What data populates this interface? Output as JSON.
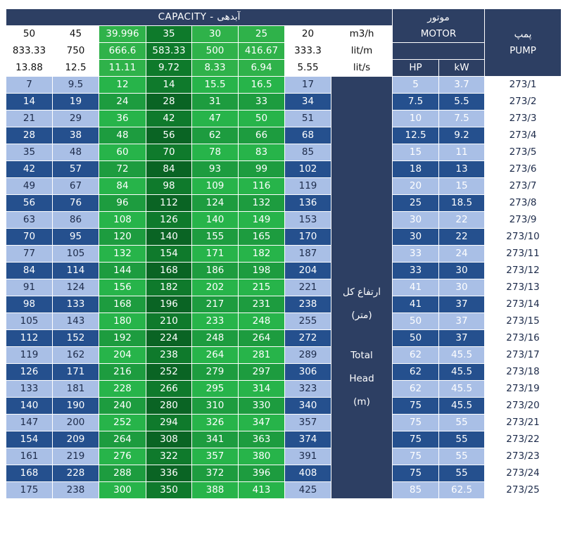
{
  "header": {
    "capacity_title": "CAPACITY - آبدهی",
    "motor_fa": "موتور",
    "motor_en": "MOTOR",
    "pump_fa": "پمپ",
    "pump_en": "PUMP",
    "hp": "HP",
    "kw": "kW"
  },
  "units": {
    "m3h": "m3/h",
    "litm": "lit/m",
    "lits": "lit/s"
  },
  "flow": {
    "m3h": [
      "50",
      "45",
      "39.996",
      "35",
      "30",
      "25",
      "20"
    ],
    "litm": [
      "833.33",
      "750",
      "666.6",
      "583.33",
      "500",
      "416.67",
      "333.3"
    ],
    "lits": [
      "13.88",
      "12.5",
      "11.11",
      "9.72",
      "8.33",
      "6.94",
      "5.55"
    ]
  },
  "head_label": {
    "fa_line1": "ارتفاع کل",
    "fa_line2": "(متر)",
    "en_line1": "Total",
    "en_line2": "Head",
    "en_line3": "(m)"
  },
  "rows": [
    {
      "v": [
        "7",
        "9.5",
        "12",
        "14",
        "15.5",
        "16.5",
        "17"
      ],
      "hp": "5",
      "kw": "3.7",
      "pump": "273/1"
    },
    {
      "v": [
        "14",
        "19",
        "24",
        "28",
        "31",
        "33",
        "34"
      ],
      "hp": "7.5",
      "kw": "5.5",
      "pump": "273/2"
    },
    {
      "v": [
        "21",
        "29",
        "36",
        "42",
        "47",
        "50",
        "51"
      ],
      "hp": "10",
      "kw": "7.5",
      "pump": "273/3"
    },
    {
      "v": [
        "28",
        "38",
        "48",
        "56",
        "62",
        "66",
        "68"
      ],
      "hp": "12.5",
      "kw": "9.2",
      "pump": "273/4"
    },
    {
      "v": [
        "35",
        "48",
        "60",
        "70",
        "78",
        "83",
        "85"
      ],
      "hp": "15",
      "kw": "11",
      "pump": "273/5"
    },
    {
      "v": [
        "42",
        "57",
        "72",
        "84",
        "93",
        "99",
        "102"
      ],
      "hp": "18",
      "kw": "13",
      "pump": "273/6"
    },
    {
      "v": [
        "49",
        "67",
        "84",
        "98",
        "109",
        "116",
        "119"
      ],
      "hp": "20",
      "kw": "15",
      "pump": "273/7"
    },
    {
      "v": [
        "56",
        "76",
        "96",
        "112",
        "124",
        "132",
        "136"
      ],
      "hp": "25",
      "kw": "18.5",
      "pump": "273/8"
    },
    {
      "v": [
        "63",
        "86",
        "108",
        "126",
        "140",
        "149",
        "153"
      ],
      "hp": "30",
      "kw": "22",
      "pump": "273/9"
    },
    {
      "v": [
        "70",
        "95",
        "120",
        "140",
        "155",
        "165",
        "170"
      ],
      "hp": "30",
      "kw": "22",
      "pump": "273/10"
    },
    {
      "v": [
        "77",
        "105",
        "132",
        "154",
        "171",
        "182",
        "187"
      ],
      "hp": "33",
      "kw": "24",
      "pump": "273/11"
    },
    {
      "v": [
        "84",
        "114",
        "144",
        "168",
        "186",
        "198",
        "204"
      ],
      "hp": "33",
      "kw": "30",
      "pump": "273/12"
    },
    {
      "v": [
        "91",
        "124",
        "156",
        "182",
        "202",
        "215",
        "221"
      ],
      "hp": "41",
      "kw": "30",
      "pump": "273/13"
    },
    {
      "v": [
        "98",
        "133",
        "168",
        "196",
        "217",
        "231",
        "238"
      ],
      "hp": "41",
      "kw": "37",
      "pump": "273/14"
    },
    {
      "v": [
        "105",
        "143",
        "180",
        "210",
        "233",
        "248",
        "255"
      ],
      "hp": "50",
      "kw": "37",
      "pump": "273/15"
    },
    {
      "v": [
        "112",
        "152",
        "192",
        "224",
        "248",
        "264",
        "272"
      ],
      "hp": "50",
      "kw": "37",
      "pump": "273/16"
    },
    {
      "v": [
        "119",
        "162",
        "204",
        "238",
        "264",
        "281",
        "289"
      ],
      "hp": "62",
      "kw": "45.5",
      "pump": "273/17"
    },
    {
      "v": [
        "126",
        "171",
        "216",
        "252",
        "279",
        "297",
        "306"
      ],
      "hp": "62",
      "kw": "45.5",
      "pump": "273/18"
    },
    {
      "v": [
        "133",
        "181",
        "228",
        "266",
        "295",
        "314",
        "323"
      ],
      "hp": "62",
      "kw": "45.5",
      "pump": "273/19"
    },
    {
      "v": [
        "140",
        "190",
        "240",
        "280",
        "310",
        "330",
        "340"
      ],
      "hp": "75",
      "kw": "45.5",
      "pump": "273/20"
    },
    {
      "v": [
        "147",
        "200",
        "252",
        "294",
        "326",
        "347",
        "357"
      ],
      "hp": "75",
      "kw": "55",
      "pump": "273/21"
    },
    {
      "v": [
        "154",
        "209",
        "264",
        "308",
        "341",
        "363",
        "374"
      ],
      "hp": "75",
      "kw": "55",
      "pump": "273/22"
    },
    {
      "v": [
        "161",
        "219",
        "276",
        "322",
        "357",
        "380",
        "391"
      ],
      "hp": "75",
      "kw": "55",
      "pump": "273/23"
    },
    {
      "v": [
        "168",
        "228",
        "288",
        "336",
        "372",
        "396",
        "408"
      ],
      "hp": "75",
      "kw": "55",
      "pump": "273/24"
    },
    {
      "v": [
        "175",
        "238",
        "300",
        "350",
        "388",
        "413",
        "425"
      ],
      "hp": "85",
      "kw": "62.5",
      "pump": "273/25"
    }
  ]
}
